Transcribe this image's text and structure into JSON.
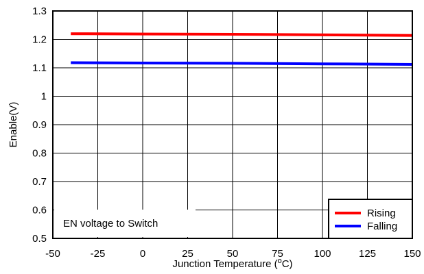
{
  "chart_data": {
    "type": "line",
    "xlabel": "Junction Temperature (",
    "xlabel_sup": "o",
    "xlabel_suffix": "C)",
    "ylabel": "Enable(V)",
    "xlim": [
      -50,
      150
    ],
    "ylim": [
      0.5,
      1.3
    ],
    "x_ticks": [
      -50,
      -25,
      0,
      25,
      50,
      75,
      100,
      125,
      150
    ],
    "x_tick_labels": [
      "-50",
      "-25",
      "0",
      "25",
      "50",
      "75",
      "100",
      "125",
      "150"
    ],
    "y_ticks": [
      0.5,
      0.6,
      0.7,
      0.8,
      0.9,
      1.0,
      1.1,
      1.2,
      1.3
    ],
    "y_tick_labels": [
      "0.5",
      "0.6",
      "0.7",
      "0.8",
      "0.9",
      "1",
      "1.1",
      "1.2",
      "1.3"
    ],
    "grid": true,
    "legend_position": "bottom-right",
    "annotation": "EN voltage to Switch",
    "series": [
      {
        "name": "Rising",
        "color": "#ff0000",
        "x": [
          -40,
          0,
          50,
          100,
          150
        ],
        "y": [
          1.22,
          1.219,
          1.218,
          1.216,
          1.214
        ]
      },
      {
        "name": "Falling",
        "color": "#0000ff",
        "x": [
          -40,
          0,
          50,
          100,
          150
        ],
        "y": [
          1.118,
          1.117,
          1.116,
          1.114,
          1.112
        ]
      }
    ]
  }
}
